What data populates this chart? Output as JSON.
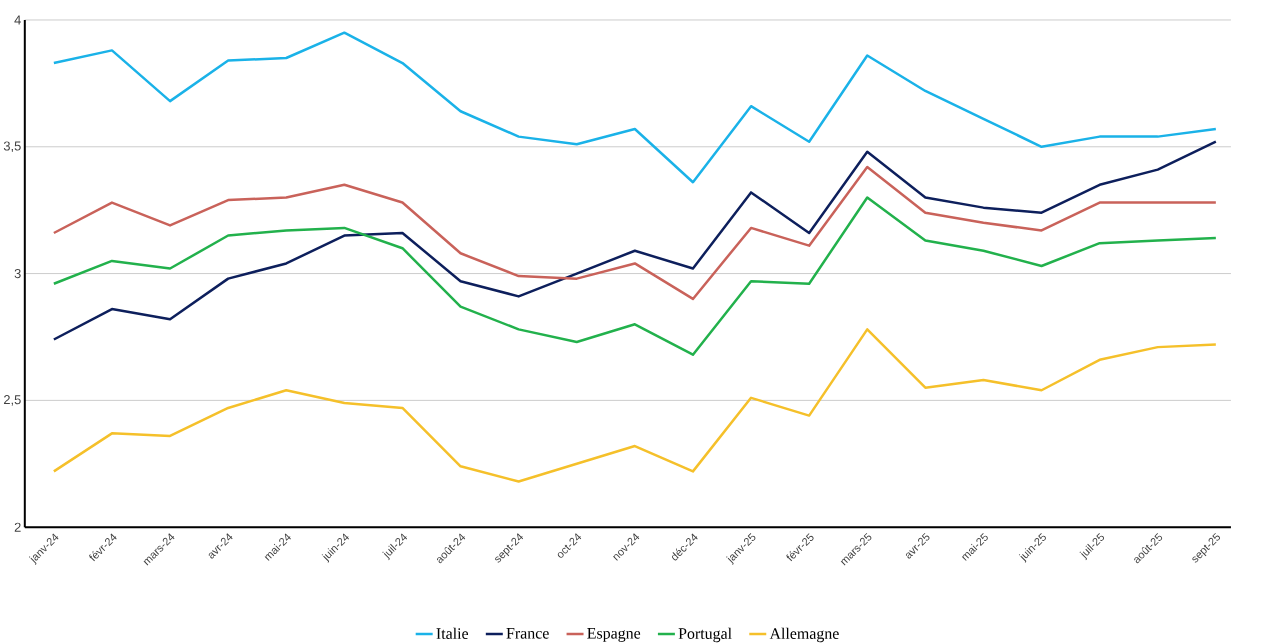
{
  "chart_data": {
    "type": "line",
    "categories": [
      "janv-24",
      "févr-24",
      "mars-24",
      "avr-24",
      "mai-24",
      "juin-24",
      "juil-24",
      "août-24",
      "sept-24",
      "oct-24",
      "nov-24",
      "déc-24",
      "janv-25",
      "févr-25",
      "mars-25",
      "avr-25",
      "mai-25",
      "juin-25",
      "juil-25",
      "août-25",
      "sept-25"
    ],
    "series": [
      {
        "name": "Italie",
        "color": "#1ab2e8",
        "values": [
          3.83,
          3.88,
          3.68,
          3.84,
          3.85,
          3.95,
          3.83,
          3.64,
          3.54,
          3.51,
          3.57,
          3.36,
          3.66,
          3.52,
          3.86,
          3.72,
          3.61,
          3.5,
          3.54,
          3.54,
          3.57
        ]
      },
      {
        "name": "France",
        "color": "#0d1f5c",
        "values": [
          2.74,
          2.86,
          2.82,
          2.98,
          3.04,
          3.15,
          3.16,
          2.97,
          2.91,
          3.0,
          3.09,
          3.02,
          3.32,
          3.16,
          3.48,
          3.3,
          3.26,
          3.24,
          3.35,
          3.41,
          3.52
        ]
      },
      {
        "name": "Espagne",
        "color": "#c9625a",
        "values": [
          3.16,
          3.28,
          3.19,
          3.29,
          3.3,
          3.35,
          3.28,
          3.08,
          2.99,
          2.98,
          3.04,
          2.9,
          3.18,
          3.11,
          3.42,
          3.24,
          3.2,
          3.17,
          3.28,
          3.28,
          3.28
        ]
      },
      {
        "name": "Portugal",
        "color": "#22b14c",
        "values": [
          2.96,
          3.05,
          3.02,
          3.15,
          3.17,
          3.18,
          3.1,
          2.87,
          2.78,
          2.73,
          2.8,
          2.68,
          2.97,
          2.96,
          3.3,
          3.13,
          3.09,
          3.03,
          3.12,
          3.13,
          3.14
        ]
      },
      {
        "name": "Allemagne",
        "color": "#f5c02a",
        "values": [
          2.22,
          2.37,
          2.36,
          2.47,
          2.54,
          2.49,
          2.47,
          2.24,
          2.18,
          2.25,
          2.32,
          2.22,
          2.51,
          2.44,
          2.78,
          2.55,
          2.58,
          2.54,
          2.66,
          2.71,
          2.72
        ]
      }
    ],
    "ylim": [
      2,
      4
    ],
    "yticks": [
      2,
      {
        "value": 2.5,
        "label": "2,5"
      },
      3,
      {
        "value": 3.5,
        "label": "3,5"
      },
      4
    ],
    "grid": "y",
    "legend": "bottom",
    "marker": "none",
    "line_style": "solid"
  }
}
